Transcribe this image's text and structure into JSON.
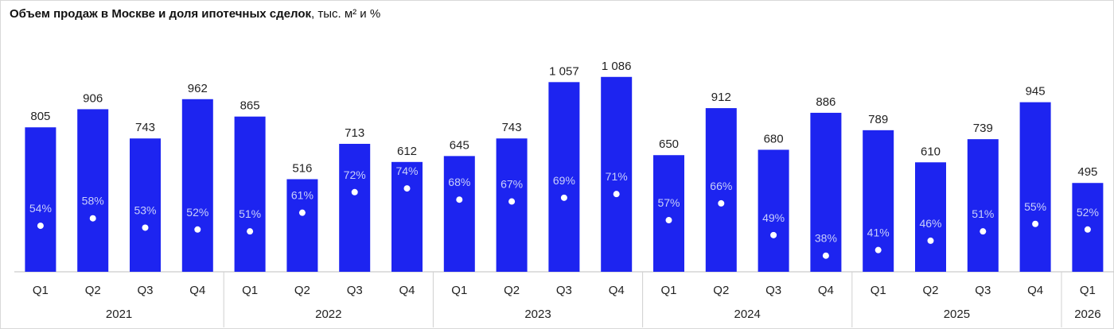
{
  "title": {
    "main": "Объем продаж в Москве и доля ипотечных сделок",
    "unit": ", тыс. м² и %"
  },
  "chart_data": {
    "type": "bar",
    "title": "Объем продаж в Москве и доля ипотечных сделок, тыс. м² и %",
    "bar_color": "#1d24f0",
    "dot_color": "#ffffff",
    "years": [
      {
        "label": "2021",
        "quarters": 4
      },
      {
        "label": "2022",
        "quarters": 4
      },
      {
        "label": "2023",
        "quarters": 4
      },
      {
        "label": "2024",
        "quarters": 4
      },
      {
        "label": "2025",
        "quarters": 4
      },
      {
        "label": "2026",
        "quarters": 1
      }
    ],
    "categories": [
      "Q1",
      "Q2",
      "Q3",
      "Q4",
      "Q1",
      "Q2",
      "Q3",
      "Q4",
      "Q1",
      "Q2",
      "Q3",
      "Q4",
      "Q1",
      "Q2",
      "Q3",
      "Q4",
      "Q1",
      "Q2",
      "Q3",
      "Q4",
      "Q1"
    ],
    "series": [
      {
        "name": "Объем продаж",
        "unit": "тыс. м²",
        "values": [
          805,
          906,
          743,
          962,
          865,
          516,
          713,
          612,
          645,
          743,
          1057,
          1086,
          650,
          912,
          680,
          886,
          789,
          610,
          739,
          945,
          495
        ],
        "labels": [
          "805",
          "906",
          "743",
          "962",
          "865",
          "516",
          "713",
          "612",
          "645",
          "743",
          "1 057",
          "1 086",
          "650",
          "912",
          "680",
          "886",
          "789",
          "610",
          "739",
          "945",
          "495"
        ]
      },
      {
        "name": "Доля ипотечных сделок",
        "unit": "%",
        "values": [
          54,
          58,
          53,
          52,
          51,
          61,
          72,
          74,
          68,
          67,
          69,
          71,
          57,
          66,
          49,
          38,
          41,
          46,
          51,
          55,
          52
        ],
        "labels": [
          "54%",
          "58%",
          "53%",
          "52%",
          "51%",
          "61%",
          "72%",
          "74%",
          "68%",
          "67%",
          "69%",
          "71%",
          "57%",
          "66%",
          "49%",
          "38%",
          "41%",
          "46%",
          "51%",
          "55%",
          "52%"
        ]
      }
    ]
  }
}
